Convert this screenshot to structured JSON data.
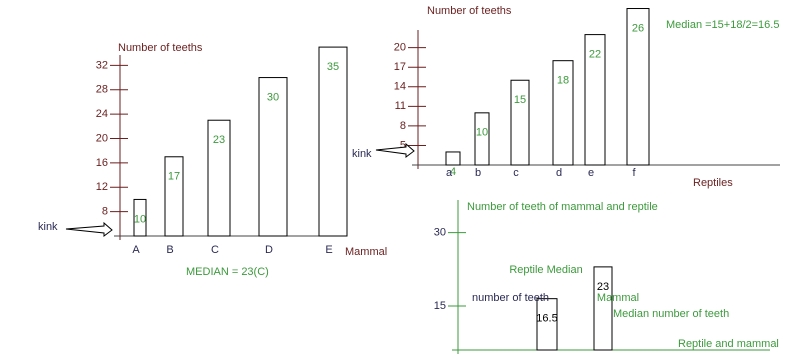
{
  "chart_data": [
    {
      "type": "bar",
      "y_label": "Number of teeths",
      "x_label": "Mammal",
      "categories": [
        "A",
        "B",
        "C",
        "D",
        "E"
      ],
      "values": [
        10,
        17,
        23,
        30,
        35
      ],
      "color": "#ffffff",
      "ylim": [
        4,
        36
      ],
      "yticks": [
        8,
        12,
        16,
        20,
        24,
        28,
        32
      ],
      "annotations": [
        "MEDIAN = 23(C)",
        "kink"
      ]
    },
    {
      "type": "bar",
      "y_label": "Number of teeths",
      "x_label": "Reptiles",
      "categories": [
        "a",
        "b",
        "c",
        "d",
        "e",
        "f"
      ],
      "values": [
        4,
        10,
        15,
        18,
        22,
        26
      ],
      "color": "#ffffff",
      "ylim": [
        2,
        27
      ],
      "yticks": [
        5,
        8,
        11,
        14,
        17,
        20
      ],
      "annotations": [
        "Median =15+18/2=16.5",
        "kink"
      ]
    },
    {
      "type": "bar",
      "y_label": "Number of teeth of mammal and reptile",
      "x_label": "Reptile and mammal",
      "categories": [
        "Reptile Median",
        "Mammal"
      ],
      "values": [
        16.5,
        23
      ],
      "color": "#ffffff",
      "ylim": [
        6,
        33
      ],
      "yticks": [
        15,
        30
      ],
      "annotations": [
        "number of teeth",
        "Median number of teeth"
      ]
    }
  ]
}
